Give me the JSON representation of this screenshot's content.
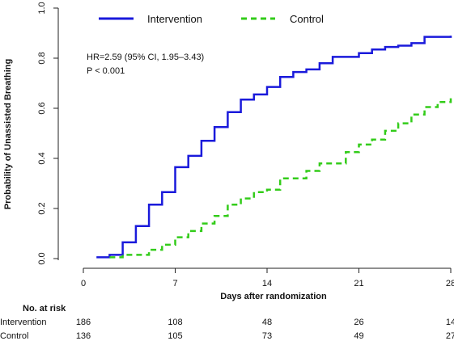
{
  "chart_data": {
    "type": "line",
    "chart_style": "kaplan-meier step curves",
    "xlabel": "Days after randomization",
    "ylabel": "Probability of Unassisted Breathing",
    "xlim": [
      0,
      28
    ],
    "ylim": [
      0,
      1.0
    ],
    "x_ticks": [
      "0",
      "7",
      "14",
      "21",
      "28"
    ],
    "y_ticks": [
      "0.0",
      "0.2",
      "0.4",
      "0.6",
      "0.8",
      "1.0"
    ],
    "grid": false,
    "legend_position": "top",
    "annotations": [
      "HR=2.59 (95% CI, 1.95–3.43)",
      "P < 0.001"
    ],
    "series": [
      {
        "name": "Intervention",
        "color": "#1a1adb",
        "line_style": "solid",
        "x": [
          1,
          2,
          3,
          4,
          5,
          6,
          7,
          8,
          9,
          10,
          11,
          12,
          13,
          14,
          15,
          16,
          17,
          18,
          19,
          21,
          22,
          23,
          24,
          25,
          26,
          28
        ],
        "y": [
          0.005,
          0.015,
          0.065,
          0.13,
          0.215,
          0.265,
          0.365,
          0.41,
          0.47,
          0.525,
          0.585,
          0.635,
          0.655,
          0.685,
          0.725,
          0.745,
          0.755,
          0.78,
          0.805,
          0.82,
          0.835,
          0.845,
          0.85,
          0.86,
          0.885,
          0.89
        ]
      },
      {
        "name": "Control",
        "color": "#33cc1a",
        "line_style": "dashed",
        "x": [
          2,
          3,
          5,
          6,
          7,
          8,
          9,
          10,
          11,
          12,
          13,
          14,
          15,
          17,
          18,
          20,
          21,
          22,
          23,
          24,
          25,
          26,
          27,
          28
        ],
        "y": [
          0.005,
          0.015,
          0.035,
          0.055,
          0.085,
          0.11,
          0.14,
          0.17,
          0.215,
          0.24,
          0.265,
          0.275,
          0.32,
          0.35,
          0.38,
          0.425,
          0.455,
          0.475,
          0.51,
          0.54,
          0.575,
          0.605,
          0.625,
          0.64
        ]
      }
    ],
    "risk_table": {
      "header": "No. at risk",
      "timepoints": [
        0,
        7,
        14,
        21,
        28
      ],
      "rows": [
        {
          "label": "Intervention",
          "values": [
            "186",
            "108",
            "48",
            "26",
            "14"
          ]
        },
        {
          "label": "Control",
          "values": [
            "136",
            "105",
            "73",
            "49",
            "27"
          ]
        }
      ]
    }
  }
}
